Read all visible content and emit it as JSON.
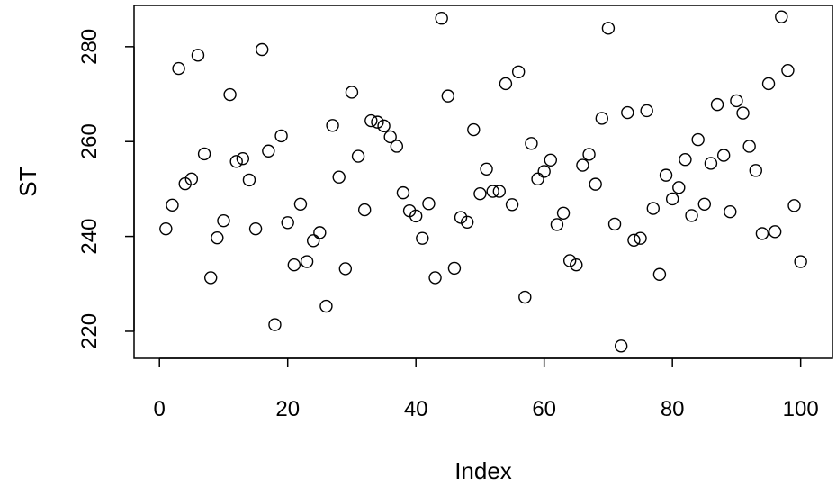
{
  "chart_data": {
    "type": "scatter",
    "xlabel": "Index",
    "ylabel": "ST",
    "xlim": [
      -3.96,
      104.96
    ],
    "ylim": [
      214.3,
      288.7
    ],
    "x_ticks": [
      0,
      20,
      40,
      60,
      80,
      100
    ],
    "y_ticks": [
      220,
      240,
      260,
      280
    ],
    "grid": false,
    "marker": "open-circle",
    "color": "#000000",
    "x": [
      1,
      2,
      3,
      4,
      5,
      6,
      7,
      8,
      9,
      10,
      11,
      12,
      13,
      14,
      15,
      16,
      17,
      18,
      19,
      20,
      21,
      22,
      23,
      24,
      25,
      26,
      27,
      28,
      29,
      30,
      31,
      32,
      33,
      34,
      35,
      36,
      37,
      38,
      39,
      40,
      41,
      42,
      43,
      44,
      45,
      46,
      47,
      48,
      49,
      50,
      51,
      52,
      53,
      54,
      55,
      56,
      57,
      58,
      59,
      60,
      61,
      62,
      63,
      64,
      65,
      66,
      67,
      68,
      69,
      70,
      71,
      72,
      73,
      74,
      75,
      76,
      77,
      78,
      79,
      80,
      81,
      82,
      83,
      84,
      85,
      86,
      87,
      88,
      89,
      90,
      91,
      92,
      93,
      94,
      95,
      96,
      97,
      98,
      99,
      100
    ],
    "y": [
      241.6,
      246.6,
      275.4,
      251.1,
      252.1,
      278.2,
      257.4,
      231.3,
      239.7,
      243.3,
      269.9,
      255.8,
      256.4,
      251.9,
      241.6,
      279.4,
      258.0,
      221.4,
      261.2,
      242.9,
      234.0,
      246.8,
      234.7,
      239.1,
      240.8,
      225.3,
      263.4,
      252.5,
      233.2,
      270.4,
      256.9,
      245.6,
      264.4,
      264.1,
      263.3,
      261.0,
      259.0,
      249.2,
      245.4,
      244.3,
      239.6,
      246.9,
      231.3,
      286.0,
      269.6,
      233.3,
      244.0,
      243.0,
      262.5,
      249.0,
      254.2,
      249.5,
      249.5,
      272.2,
      246.7,
      274.7,
      227.2,
      259.6,
      252.1,
      253.7,
      256.1,
      242.5,
      244.9,
      234.9,
      234.0,
      255.0,
      257.3,
      251.0,
      264.9,
      283.9,
      242.6,
      216.9,
      266.1,
      239.2,
      239.6,
      266.5,
      245.9,
      232.0,
      252.9,
      247.9,
      250.3,
      256.2,
      244.4,
      260.4,
      246.8,
      255.4,
      267.8,
      257.1,
      245.2,
      268.6,
      266.0,
      259.0,
      253.9,
      240.6,
      272.2,
      241.0,
      286.3,
      275.0,
      246.5,
      234.7
    ]
  }
}
